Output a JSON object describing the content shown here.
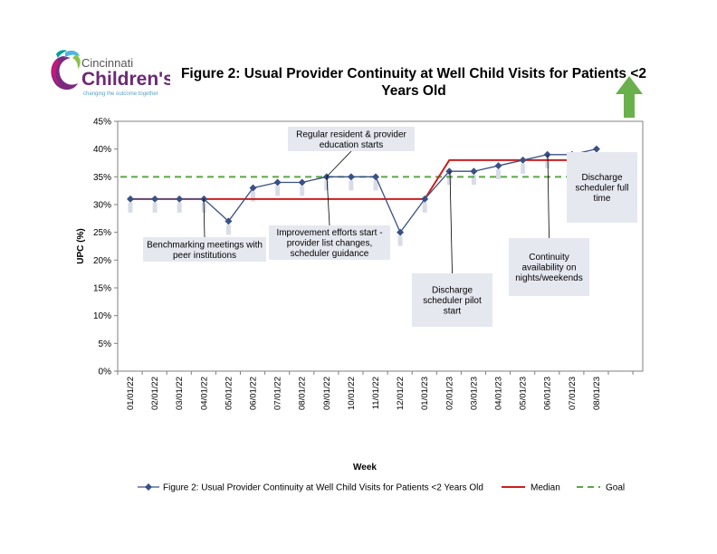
{
  "logo": {
    "line1": "Cincinnati",
    "line2": "Children's",
    "tagline": "changing the outcome together"
  },
  "chart_data": {
    "type": "line",
    "title": "Figure 2: Usual Provider Continuity at Well Child Visits for Patients <2 Years Old",
    "xlabel": "Week",
    "ylabel": "UPC (%)",
    "ylim": [
      0,
      45
    ],
    "yticks": [
      "0%",
      "5%",
      "10%",
      "15%",
      "20%",
      "25%",
      "30%",
      "35%",
      "40%",
      "45%"
    ],
    "categories": [
      "01/01/22",
      "02/01/22",
      "03/01/22",
      "04/01/22",
      "05/01/22",
      "06/01/22",
      "07/01/22",
      "08/01/22",
      "09/01/22",
      "10/01/22",
      "11/01/22",
      "12/01/22",
      "01/01/23",
      "02/01/23",
      "03/01/23",
      "04/01/23",
      "05/01/23",
      "06/01/23",
      "07/01/23",
      "08/01/23"
    ],
    "series": [
      {
        "name": "Figure 2: Usual Provider Continuity at Well Child Visits for Patients <2 Years Old",
        "color": "#3a5185",
        "values": [
          31,
          31,
          31,
          31,
          27,
          33,
          34,
          34,
          35,
          35,
          35,
          25,
          31,
          36,
          36,
          37,
          38,
          39,
          39,
          40
        ]
      },
      {
        "name": "Median",
        "color": "#cc1f1f",
        "segments": [
          {
            "from": 0,
            "to": 12,
            "value": 31
          },
          {
            "from": 13,
            "to": 20.5,
            "value": 38
          }
        ]
      },
      {
        "name": "Goal",
        "color": "#5aa845",
        "value": 35
      }
    ],
    "annotations": [
      "Regular resident & provider education starts",
      "Benchmarking meetings with peer institutions",
      "Improvement efforts start - provider list changes, scheduler guidance",
      "Discharge scheduler pilot start",
      "Continuity availability on nights/weekends",
      "Discharge scheduler full time"
    ],
    "improvement_direction": "up",
    "arrow_color": "#6ab04c",
    "grid": false,
    "legend_position": "bottom"
  }
}
